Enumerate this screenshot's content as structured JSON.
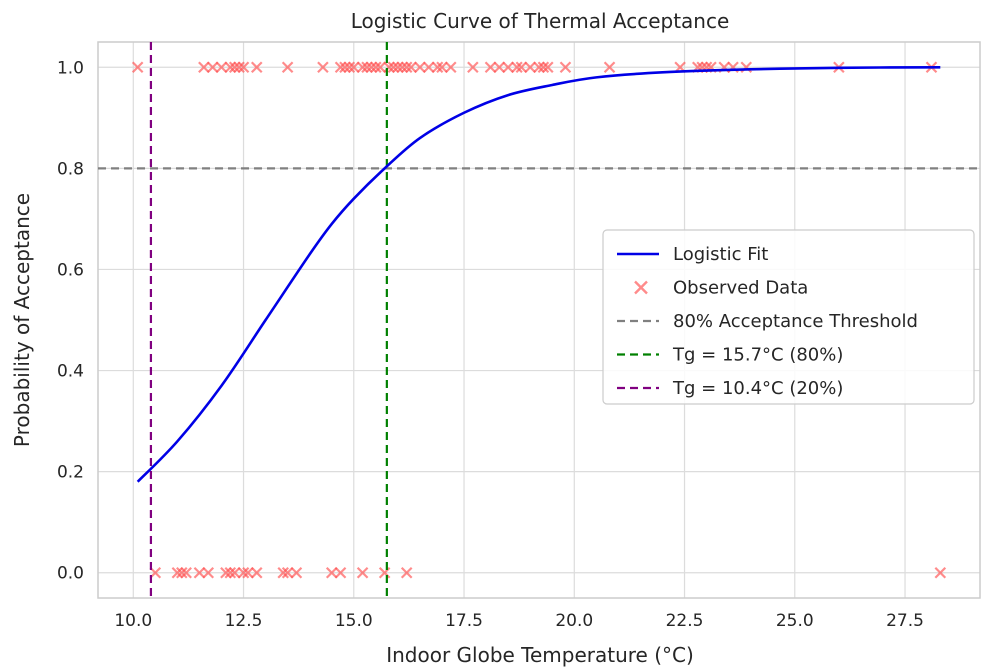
{
  "chart_data": {
    "type": "scatter",
    "title": "Logistic Curve of Thermal Acceptance",
    "xlabel": "Indoor Globe Temperature (°C)",
    "ylabel": "Probability of Acceptance",
    "xlim": [
      9.2,
      29.2
    ],
    "ylim": [
      -0.05,
      1.05
    ],
    "x_ticks": [
      10.0,
      12.5,
      15.0,
      17.5,
      20.0,
      22.5,
      25.0,
      27.5
    ],
    "x_tick_labels": [
      "10.0",
      "12.5",
      "15.0",
      "17.5",
      "20.0",
      "22.5",
      "25.0",
      "27.5"
    ],
    "y_ticks": [
      0.0,
      0.2,
      0.4,
      0.6,
      0.8,
      1.0
    ],
    "y_tick_labels": [
      "0.0",
      "0.2",
      "0.4",
      "0.6",
      "0.8",
      "1.0"
    ],
    "grid": true,
    "legend_position": "center-right",
    "series": [
      {
        "name": "Logistic Fit",
        "kind": "line",
        "color": "#0000e6",
        "x": [
          10.1,
          11.0,
          12.0,
          13.0,
          14.0,
          14.5,
          15.0,
          15.7,
          16.5,
          17.5,
          18.5,
          19.5,
          20.5,
          22.0,
          24.0,
          26.0,
          28.3
        ],
        "y": [
          0.18,
          0.26,
          0.37,
          0.5,
          0.63,
          0.69,
          0.74,
          0.8,
          0.86,
          0.91,
          0.945,
          0.965,
          0.98,
          0.99,
          0.996,
          0.999,
          1.0
        ]
      },
      {
        "name": "Observed Data",
        "kind": "scatter",
        "marker": "x",
        "color": "#ff4d4d",
        "x": [
          10.1,
          11.6,
          11.8,
          12.0,
          12.2,
          12.3,
          12.4,
          12.5,
          12.8,
          13.5,
          14.3,
          14.7,
          14.8,
          14.9,
          15.0,
          15.2,
          15.3,
          15.4,
          15.5,
          15.6,
          15.8,
          15.9,
          16.0,
          16.1,
          16.2,
          16.3,
          16.5,
          16.7,
          16.9,
          17.0,
          17.2,
          17.7,
          18.1,
          18.3,
          18.5,
          18.7,
          18.8,
          19.0,
          19.2,
          19.3,
          19.4,
          19.8,
          20.8,
          22.4,
          22.8,
          22.9,
          23.0,
          23.1,
          23.4,
          23.6,
          23.9,
          26.0,
          28.1,
          10.5,
          11.0,
          11.1,
          11.2,
          11.5,
          11.7,
          12.1,
          12.2,
          12.3,
          12.5,
          12.6,
          12.8,
          13.4,
          13.5,
          13.7,
          14.5,
          14.7,
          15.2,
          15.7,
          16.2,
          28.3
        ],
        "y": [
          1,
          1,
          1,
          1,
          1,
          1,
          1,
          1,
          1,
          1,
          1,
          1,
          1,
          1,
          1,
          1,
          1,
          1,
          1,
          1,
          1,
          1,
          1,
          1,
          1,
          1,
          1,
          1,
          1,
          1,
          1,
          1,
          1,
          1,
          1,
          1,
          1,
          1,
          1,
          1,
          1,
          1,
          1,
          1,
          1,
          1,
          1,
          1,
          1,
          1,
          1,
          1,
          1,
          0,
          0,
          0,
          0,
          0,
          0,
          0,
          0,
          0,
          0,
          0,
          0,
          0,
          0,
          0,
          0,
          0,
          0,
          0,
          0,
          0
        ]
      },
      {
        "name": "80% Acceptance Threshold",
        "kind": "hline",
        "color": "#808080",
        "y": 0.8
      },
      {
        "name": "Tg = 15.7°C (80%)",
        "kind": "vline",
        "color": "#008000",
        "x": 15.75
      },
      {
        "name": "Tg = 10.4°C (20%)",
        "kind": "vline",
        "color": "#800080",
        "x": 10.4
      }
    ]
  }
}
